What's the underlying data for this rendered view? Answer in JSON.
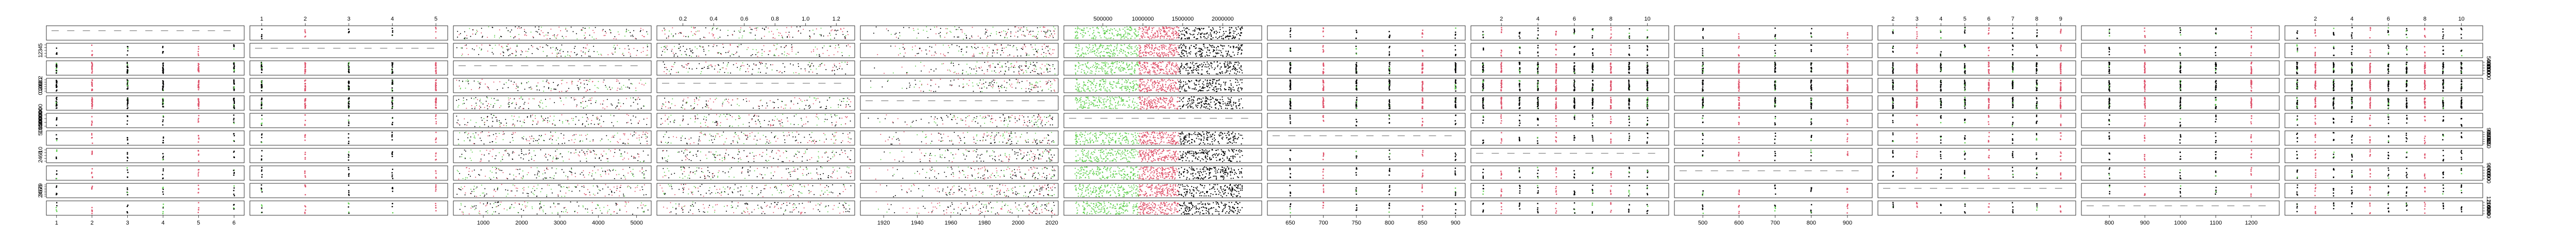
{
  "chart_data": {
    "type": "scatter",
    "layout": "scatterplot-matrix",
    "rows": 11,
    "columns": 12,
    "title": "",
    "palette": {
      "black": "#000000",
      "red": "#df536b",
      "green": "#61d04f"
    },
    "tick_labels": {
      "top": {
        "col1": [
          "1",
          "2",
          "3",
          "4",
          "5"
        ],
        "col3": [
          "0.2",
          "0.4",
          "0.6",
          "0.8",
          "1.0",
          "1.2"
        ],
        "col5": [
          "500000",
          "1000000",
          "1500000",
          "2000000"
        ],
        "col7": [
          "2",
          "4",
          "6",
          "8",
          "10"
        ],
        "col9": [
          "2",
          "3",
          "4",
          "5",
          "6",
          "7",
          "8",
          "9"
        ],
        "col11": [
          "2",
          "4",
          "6",
          "8",
          "10"
        ]
      },
      "bottom": {
        "col0": [
          "1",
          "2",
          "3",
          "4",
          "5",
          "6"
        ],
        "col2": [
          "1000",
          "2000",
          "3000",
          "4000",
          "5000"
        ],
        "col4": [
          "1920",
          "1940",
          "1960",
          "1980",
          "2000",
          "2020"
        ],
        "col6": [
          "650",
          "700",
          "750",
          "800",
          "850",
          "900"
        ],
        "col8": [
          "500",
          "600",
          "700",
          "800",
          "900"
        ],
        "col10": [
          "800",
          "900",
          "1000",
          "1100",
          "1200"
        ]
      },
      "left": {
        "row1": [
          "1",
          "2",
          "3",
          "4",
          "5"
        ],
        "row3": [
          "0.2",
          "0.4",
          "0.6",
          "0.8",
          "1.0",
          "1.2"
        ],
        "row5": [
          "500000",
          "1000000",
          "1500000",
          "2000000"
        ],
        "row7": [
          "2",
          "4",
          "6",
          "8",
          "10"
        ],
        "row9": [
          "2",
          "3",
          "4",
          "5",
          "6",
          "7",
          "8",
          "9"
        ]
      },
      "right": {
        "row2": [
          "1000",
          "2000",
          "3000",
          "4000",
          "5000"
        ],
        "row6": [
          "650",
          "700",
          "750",
          "800",
          "850",
          "900"
        ],
        "row8": [
          "500",
          "600",
          "700",
          "800",
          "900"
        ],
        "row10": [
          "800",
          "900",
          "1000",
          "1100",
          "1200"
        ]
      }
    },
    "columns_spec": [
      {
        "range": [
          0.8,
          6.2
        ],
        "kind": "discrete",
        "levels": [
          1,
          2,
          3,
          4,
          5,
          6
        ]
      },
      {
        "range": [
          0.8,
          5.2
        ],
        "kind": "discrete",
        "levels": [
          1,
          2,
          3,
          4,
          5
        ]
      },
      {
        "range": [
          300,
          5300
        ],
        "kind": "continuous"
      },
      {
        "range": [
          0.05,
          1.3
        ],
        "kind": "continuous"
      },
      {
        "range": [
          1908,
          2022
        ],
        "kind": "continuous"
      },
      {
        "range": [
          50000,
          2450000
        ],
        "kind": "banded",
        "bands": [
          [
            150000,
            950000,
            "green"
          ],
          [
            950000,
            1450000,
            "red"
          ],
          [
            1450000,
            2250000,
            "black"
          ]
        ]
      },
      {
        "range": [
          620,
          910
        ],
        "kind": "discrete",
        "levels": [
          650,
          700,
          750,
          800,
          850,
          900
        ]
      },
      {
        "range": [
          0.5,
          11
        ],
        "kind": "discrete",
        "levels": [
          1,
          2,
          3,
          4,
          5,
          6,
          7,
          8,
          9,
          10
        ]
      },
      {
        "range": [
          430,
          960
        ],
        "kind": "discrete",
        "levels": [
          500,
          600,
          700,
          800,
          900
        ]
      },
      {
        "range": [
          1.5,
          9.5
        ],
        "kind": "discrete",
        "levels": [
          2,
          3,
          4,
          5,
          6,
          7,
          8,
          9
        ]
      },
      {
        "range": [
          730,
          1270
        ],
        "kind": "discrete",
        "levels": [
          800,
          900,
          1000,
          1100,
          1200
        ]
      },
      {
        "range": [
          0.5,
          11
        ],
        "kind": "discrete",
        "levels": [
          1,
          2,
          3,
          4,
          5,
          6,
          7,
          8,
          9,
          10
        ]
      }
    ],
    "dense_rows": [
      2,
      3,
      4
    ],
    "grid": false,
    "legend": "none"
  }
}
